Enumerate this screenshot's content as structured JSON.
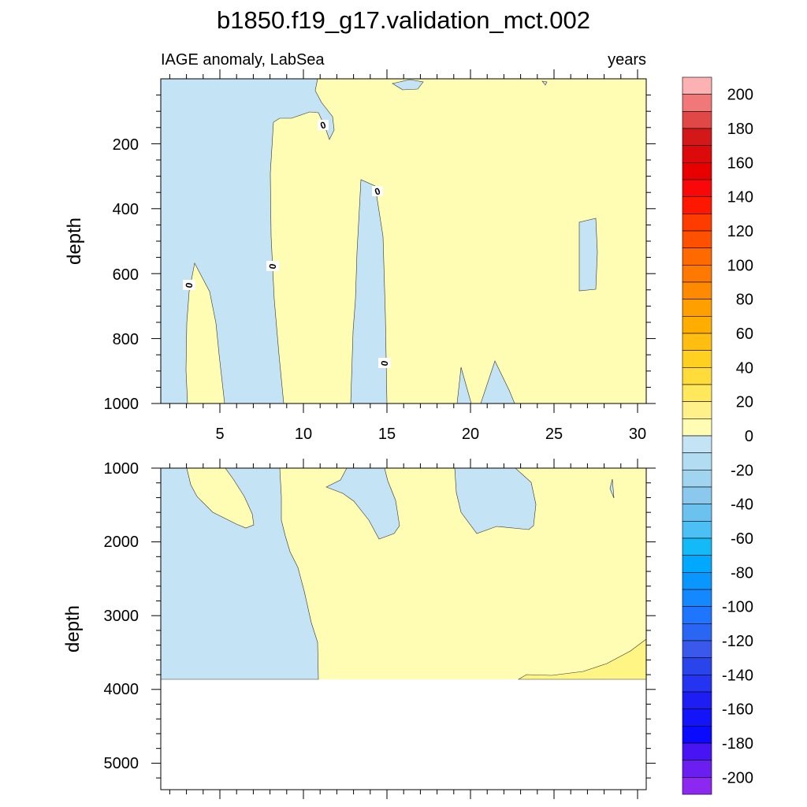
{
  "chart_data": {
    "type": "contour",
    "title": "b1850.f19_g17.validation_mct.002",
    "subtitle_left": "IAGE anomaly, LabSea",
    "subtitle_right": "years",
    "colors": {
      "positive_fill": "#fffcb4",
      "positive_strong_fill": "#fef584",
      "negative_fill": "#c4e4f5",
      "contour_line": "#333333"
    },
    "panels": [
      {
        "name": "upper",
        "ylabel": "depth",
        "ylim": [
          0,
          1000
        ],
        "xlim": [
          1.5,
          30.5
        ],
        "y_ticks": [
          "200",
          "400",
          "600",
          "800",
          "1000"
        ],
        "x_ticks": [
          "5",
          "10",
          "15",
          "20",
          "25",
          "30"
        ],
        "contour_labels": [
          "0",
          "0",
          "0",
          "0",
          "0"
        ]
      },
      {
        "name": "lower",
        "ylabel": "depth",
        "ylim": [
          1000,
          5400
        ],
        "xlim": [
          1.5,
          30.5
        ],
        "y_ticks": [
          "1000",
          "2000",
          "3000",
          "4000",
          "5000"
        ],
        "data_bottom": 3875
      }
    ],
    "colorbar": {
      "labels": [
        "200",
        "180",
        "160",
        "140",
        "120",
        "100",
        "80",
        "60",
        "40",
        "20",
        "0",
        "-20",
        "-40",
        "-60",
        "-80",
        "-100",
        "-120",
        "-140",
        "-160",
        "-180",
        "-200"
      ],
      "colors": [
        "#fcb2b2",
        "#f07878",
        "#e04848",
        "#d21818",
        "#dc0a0a",
        "#e80000",
        "#f80808",
        "#ff1800",
        "#ff3c00",
        "#ff5000",
        "#ff6a00",
        "#ff7800",
        "#ff8a00",
        "#ffa000",
        "#ffae00",
        "#ffbe10",
        "#ffd020",
        "#ffdc3a",
        "#ffe85c",
        "#fff08a",
        "#fffcb4",
        "#c4e4f5",
        "#b2dcf2",
        "#a0d4ef",
        "#8ac8ee",
        "#6cc2ef",
        "#4cc0f4",
        "#14baf8",
        "#00a8ff",
        "#0a96ff",
        "#1488ff",
        "#1e76ff",
        "#2a66f4",
        "#3a58ec",
        "#2a44ec",
        "#2434f0",
        "#1e1ef4",
        "#1414f8",
        "#0a0aff",
        "#4814f4",
        "#6a1ef0",
        "#8c28f0"
      ]
    }
  }
}
